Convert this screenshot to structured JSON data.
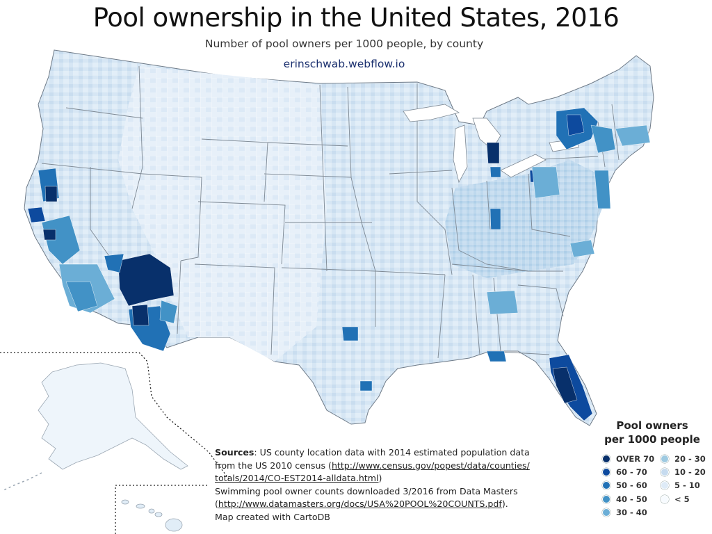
{
  "title": "Pool ownership in the United States, 2016",
  "subtitle": "Number of pool owners per 1000 people, by county",
  "credit": "erinschwab.webflow.io",
  "legend": {
    "title_line1": "Pool owners",
    "title_line2": "per 1000 people",
    "items": [
      {
        "label": "OVER 70",
        "color": "#08306b"
      },
      {
        "label": "60 - 70",
        "color": "#0d4a9e"
      },
      {
        "label": "50 - 60",
        "color": "#2171b5"
      },
      {
        "label": "40 - 50",
        "color": "#4292c6"
      },
      {
        "label": "30 - 40",
        "color": "#6baed6"
      },
      {
        "label": "20 - 30",
        "color": "#9ecae1"
      },
      {
        "label": "10 - 20",
        "color": "#c6dbef"
      },
      {
        "label": "5 - 10",
        "color": "#deebf7"
      },
      {
        "label": "< 5",
        "color": "#f7fbff"
      }
    ]
  },
  "sources": {
    "heading": "Sources",
    "line1": ": US county location data with 2014 estimated population data",
    "line2_prefix": "from the US 2010 census (",
    "line2_link": "http://www.census.gov/popest/data/counties/",
    "line3_link": "totals/2014/CO-EST2014-alldata.html",
    "line3_suffix": ")",
    "line4": "Swimming pool owner counts downloaded 3/2016 from Data Masters",
    "line5_prefix": "(",
    "line5_link": "http://www.datamasters.org/docs/USA%20POOL%20COUNTS.pdf",
    "line5_suffix": ").",
    "line6": "Map created with CartoDB"
  },
  "regions": {
    "conus": "contiguous-states",
    "alaska": "alaska",
    "hawaii": "hawaii"
  }
}
